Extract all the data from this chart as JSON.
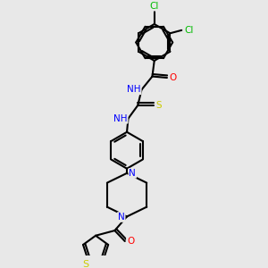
{
  "bg_color": "#e8e8e8",
  "bond_color": "#000000",
  "atom_colors": {
    "N": "#0000ff",
    "O": "#ff0000",
    "S": "#cccc00",
    "Cl": "#00bb00"
  },
  "figsize": [
    3.0,
    3.0
  ],
  "dpi": 100
}
